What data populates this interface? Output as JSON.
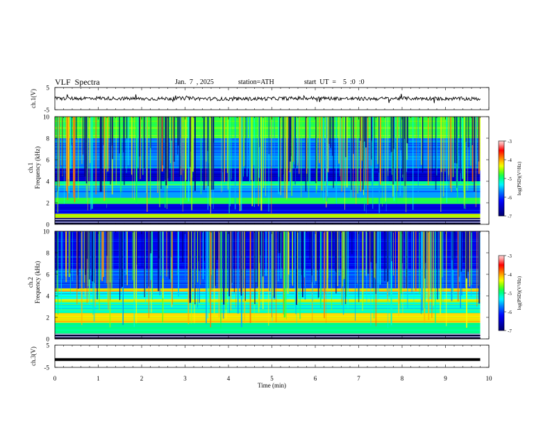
{
  "header": {
    "title": "VLF  Spectra",
    "date": "Jan.  7  , 2025",
    "station": "station=ATH",
    "start_ut": "start  UT  =    5  :0  :0"
  },
  "colors": {
    "colormap": [
      "#000000",
      "#000090",
      "#0000ff",
      "#0080ff",
      "#00ffff",
      "#00ff60",
      "#80ff00",
      "#ffff00",
      "#ff8000",
      "#ff0000",
      "#ffc0c0",
      "#ffffff"
    ],
    "trace": "#000000"
  },
  "chart_data": [
    {
      "type": "line",
      "panel": "ch1-waveform",
      "ylabel": "ch.1(V)",
      "ylim": [
        -5,
        5
      ],
      "ytick_labels": [
        "5",
        "-5"
      ],
      "xlim": [
        0,
        10
      ],
      "description_value": "noisy waveform centred near 0 V, amplitude about ±1 V",
      "x": [
        0,
        1,
        2,
        3,
        4,
        5,
        6,
        7,
        8,
        9,
        9.8
      ],
      "y": [
        0,
        0.2,
        -0.1,
        0.1,
        -0.2,
        0,
        0.2,
        -0.1,
        0.1,
        0,
        -0.1
      ]
    },
    {
      "type": "heatmap",
      "panel": "ch1-spectrogram",
      "ylabel": "ch.1\nFrequency  (kHz)",
      "xlim": [
        0,
        10
      ],
      "ylim": [
        0,
        10
      ],
      "ytick_labels": [
        "0",
        "2",
        "4",
        "6",
        "8",
        "10"
      ],
      "data_extent_x": [
        0,
        9.8
      ],
      "colorbar": {
        "label": "log(PSD)(V²/Hz)",
        "range": [
          -7,
          -3
        ],
        "tick_labels": [
          "-3",
          "-4",
          "-5",
          "-6",
          "-7"
        ]
      },
      "bands_khz": [
        {
          "f_low": 0,
          "f_high": 0.6,
          "level": -7
        },
        {
          "f_low": 0.6,
          "f_high": 1.0,
          "level": -4.5
        },
        {
          "f_low": 1.0,
          "f_high": 1.9,
          "level": -6.3
        },
        {
          "f_low": 1.9,
          "f_high": 2.5,
          "level": -4.8
        },
        {
          "f_low": 2.5,
          "f_high": 3.6,
          "level": -5.6
        },
        {
          "f_low": 3.6,
          "f_high": 4.0,
          "level": -5.0
        },
        {
          "f_low": 4.0,
          "f_high": 5.2,
          "level": -6.4
        },
        {
          "f_low": 5.2,
          "f_high": 8.0,
          "level": -5.7
        },
        {
          "f_low": 8.0,
          "f_high": 10.0,
          "level": -4.8
        }
      ]
    },
    {
      "type": "heatmap",
      "panel": "ch2-spectrogram",
      "ylabel": "ch.2\nFrequency  (kHz)",
      "xlim": [
        0,
        10
      ],
      "ylim": [
        0,
        10
      ],
      "ytick_labels": [
        "0",
        "2",
        "4",
        "6",
        "8",
        "10"
      ],
      "data_extent_x": [
        0,
        9.8
      ],
      "colorbar": {
        "label": "log(PSD)(V²/Hz)",
        "range": [
          -7,
          -3
        ],
        "tick_labels": [
          "-3",
          "-4",
          "-5",
          "-6",
          "-7"
        ]
      },
      "bands_khz": [
        {
          "f_low": 0,
          "f_high": 0.5,
          "level": -7
        },
        {
          "f_low": 0.5,
          "f_high": 1.5,
          "level": -5.0
        },
        {
          "f_low": 1.5,
          "f_high": 2.4,
          "level": -4.2
        },
        {
          "f_low": 2.4,
          "f_high": 3.4,
          "level": -5.2
        },
        {
          "f_low": 3.4,
          "f_high": 3.7,
          "level": -4.4
        },
        {
          "f_low": 3.7,
          "f_high": 4.4,
          "level": -5.3
        },
        {
          "f_low": 4.4,
          "f_high": 4.7,
          "level": -4.2
        },
        {
          "f_low": 4.7,
          "f_high": 6.5,
          "level": -5.9
        },
        {
          "f_low": 6.5,
          "f_high": 10.0,
          "level": -6.3
        }
      ]
    },
    {
      "type": "line",
      "panel": "ch3-waveform",
      "ylabel": "ch.3(V)",
      "ylim": [
        -5,
        5
      ],
      "ytick_labels": [
        "5",
        "-5"
      ],
      "xlim": [
        0,
        10
      ],
      "x": [
        0,
        9.8
      ],
      "y": [
        -1.5,
        -1.5
      ]
    }
  ],
  "xaxis": {
    "label": "Time  (min)",
    "tick_labels": [
      "0",
      "1",
      "2",
      "3",
      "4",
      "5",
      "6",
      "7",
      "8",
      "9",
      "10"
    ]
  }
}
